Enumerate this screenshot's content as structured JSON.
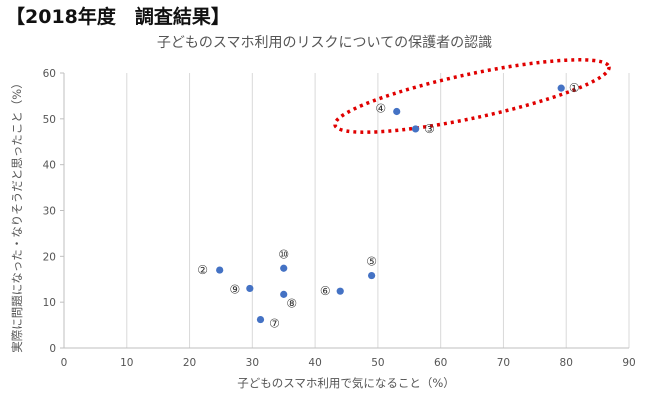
{
  "header": {
    "title": "【2018年度　調査結果】"
  },
  "chart_data": {
    "type": "scatter",
    "title": "子どものスマホ利用のリスクについての保護者の認識",
    "xlabel": "子どものスマホ利用で気になること（%）",
    "ylabel": "実際に問題になった・なりそうだと思ったこと（%）",
    "xlim": [
      0,
      90
    ],
    "ylim": [
      0,
      60
    ],
    "xticks": [
      0,
      10,
      20,
      30,
      40,
      50,
      60,
      70,
      80,
      90
    ],
    "yticks": [
      0,
      10,
      20,
      30,
      40,
      50,
      60
    ],
    "grid": "vertical",
    "points": [
      {
        "label": "①",
        "x": 79.2,
        "y": 56.7
      },
      {
        "label": "②",
        "x": 24.8,
        "y": 17.0
      },
      {
        "label": "③",
        "x": 56.0,
        "y": 47.8
      },
      {
        "label": "④",
        "x": 53.0,
        "y": 51.6
      },
      {
        "label": "⑤",
        "x": 49.0,
        "y": 15.8
      },
      {
        "label": "⑥",
        "x": 44.0,
        "y": 12.4
      },
      {
        "label": "⑦",
        "x": 31.3,
        "y": 6.2
      },
      {
        "label": "⑧",
        "x": 35.0,
        "y": 11.7
      },
      {
        "label": "⑨",
        "x": 29.6,
        "y": 13.0
      },
      {
        "label": "⑩",
        "x": 35.0,
        "y": 17.4
      }
    ],
    "colors": {
      "marker": "#4472C4",
      "highlight": "#E00000",
      "grid": "#d9d9d9"
    }
  }
}
